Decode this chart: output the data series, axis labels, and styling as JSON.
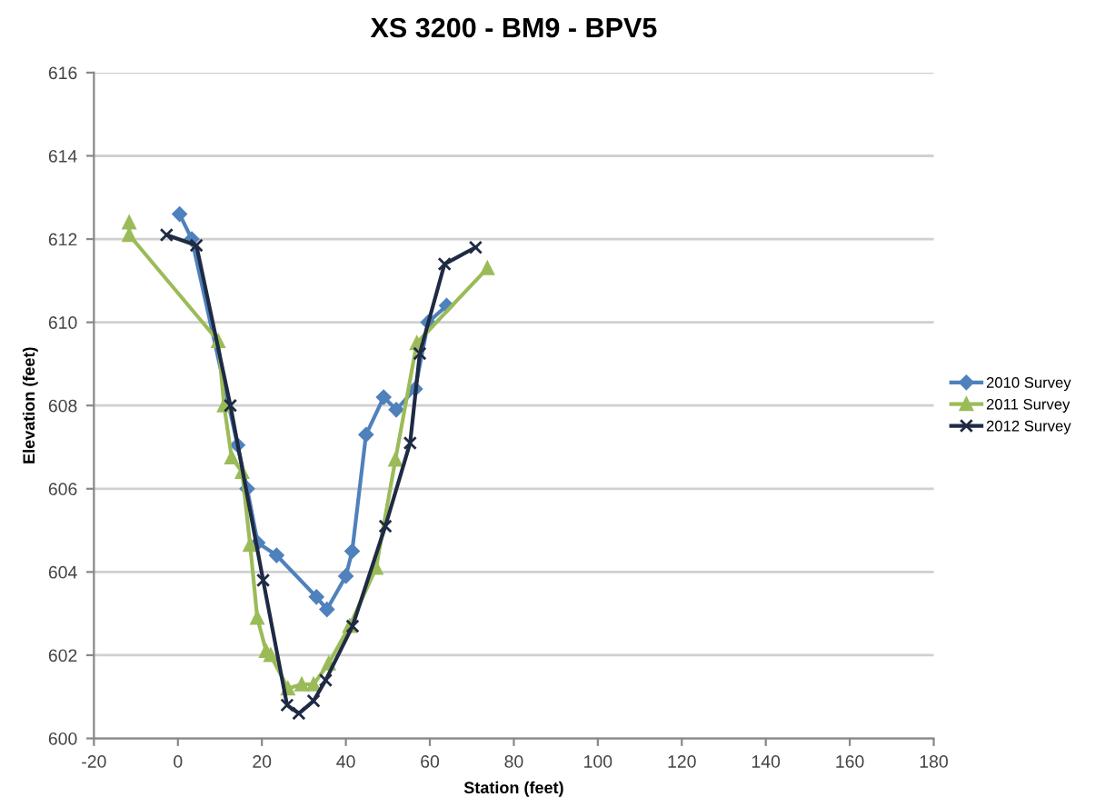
{
  "chart_data": {
    "type": "line",
    "title": "XS 3200 - BM9 - BPV5",
    "xlabel": "Station (feet)",
    "ylabel": "Elevation (feet)",
    "xlim": [
      -20,
      180
    ],
    "xticks": [
      -20,
      0,
      20,
      40,
      60,
      80,
      100,
      120,
      140,
      160,
      180
    ],
    "ylim": [
      600,
      616
    ],
    "yticks": [
      600,
      602,
      604,
      606,
      608,
      610,
      612,
      614,
      616
    ],
    "grid": "y",
    "legend": "right",
    "series": [
      {
        "name": "2010 Survey",
        "color": "#4f81bd",
        "marker": "diamond",
        "x": [
          0.4,
          3.3,
          14.2,
          16.5,
          19,
          23.5,
          33,
          35.5,
          40,
          41.5,
          44.8,
          49,
          52,
          56.5,
          59.6,
          64
        ],
        "values": [
          612.6,
          612.0,
          607.05,
          606.0,
          604.7,
          604.4,
          603.4,
          603.1,
          603.9,
          604.5,
          607.3,
          608.2,
          607.9,
          608.4,
          610.0,
          610.4
        ]
      },
      {
        "name": "2011 Survey",
        "color": "#9bbb59",
        "marker": "triangle",
        "x": [
          -11.6,
          -11.6,
          9.6,
          11,
          12.8,
          15.3,
          17.2,
          18.9,
          21,
          22.1,
          26.2,
          29.5,
          32.3,
          35.9,
          40.9,
          47.2,
          51.8,
          56.9,
          73.7
        ],
        "values": [
          612.4,
          612.1,
          609.55,
          608.0,
          606.75,
          606.4,
          604.65,
          602.9,
          602.1,
          602.0,
          601.2,
          601.3,
          601.3,
          601.8,
          602.7,
          604.1,
          606.7,
          609.5,
          611.3
        ]
      },
      {
        "name": "2012 Survey",
        "color": "#1f2a44",
        "marker": "cross",
        "x": [
          -2.7,
          4.4,
          12.5,
          20.3,
          26,
          28.8,
          32.3,
          35.2,
          41.6,
          49.4,
          55.3,
          57.6,
          63.5,
          70.9
        ],
        "values": [
          612.1,
          611.85,
          608.0,
          603.8,
          600.8,
          600.6,
          600.9,
          601.4,
          602.7,
          605.1,
          607.1,
          609.25,
          611.4,
          611.8
        ]
      }
    ]
  }
}
